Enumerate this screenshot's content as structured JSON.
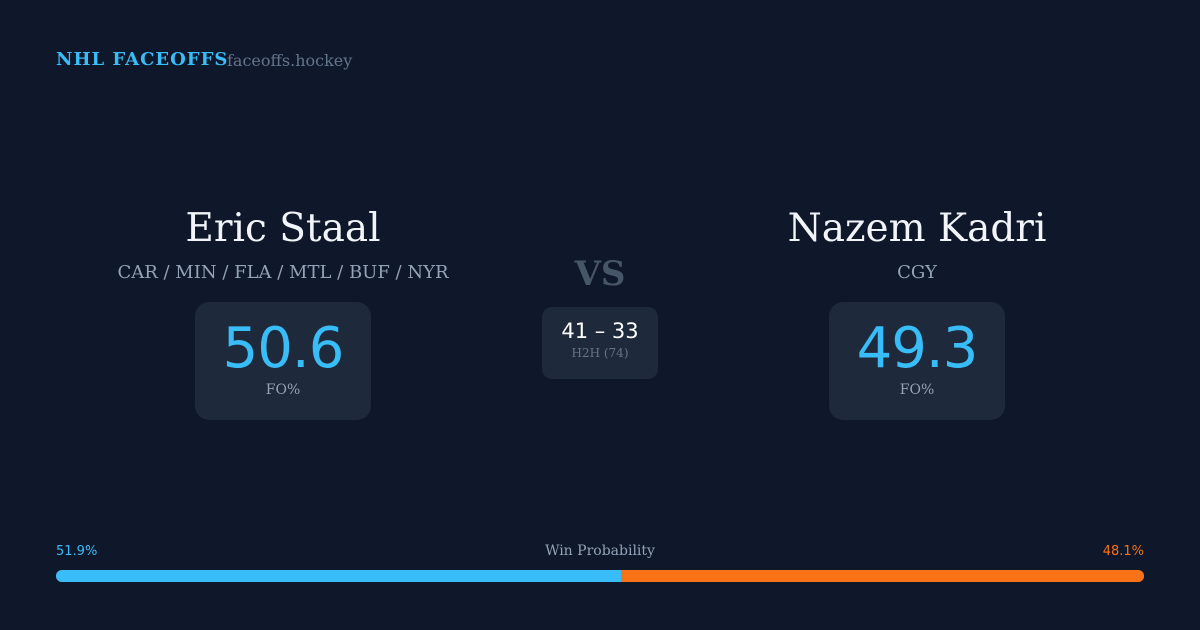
{
  "header": {
    "brand": "NHL FACEOFFS",
    "site": "faceoffs.hockey"
  },
  "left": {
    "name": "Eric Staal",
    "teams": "CAR / MIN / FLA / MTL / BUF / NYR",
    "fo_pct": "50.6",
    "fo_label": "FO%"
  },
  "right": {
    "name": "Nazem Kadri",
    "teams": "CGY",
    "fo_pct": "49.3",
    "fo_label": "FO%"
  },
  "middle": {
    "vs": "VS",
    "score": "41 – 33",
    "h2h_label": "H2H (74)"
  },
  "win_probability": {
    "label": "Win Probability",
    "left_text": "51.9%",
    "right_text": "48.1%",
    "left_value": 51.9,
    "right_value": 48.1
  },
  "colors": {
    "accent": "#38bdf8",
    "opponent": "#f97316",
    "background": "#0f172a",
    "card": "#1e293b"
  }
}
